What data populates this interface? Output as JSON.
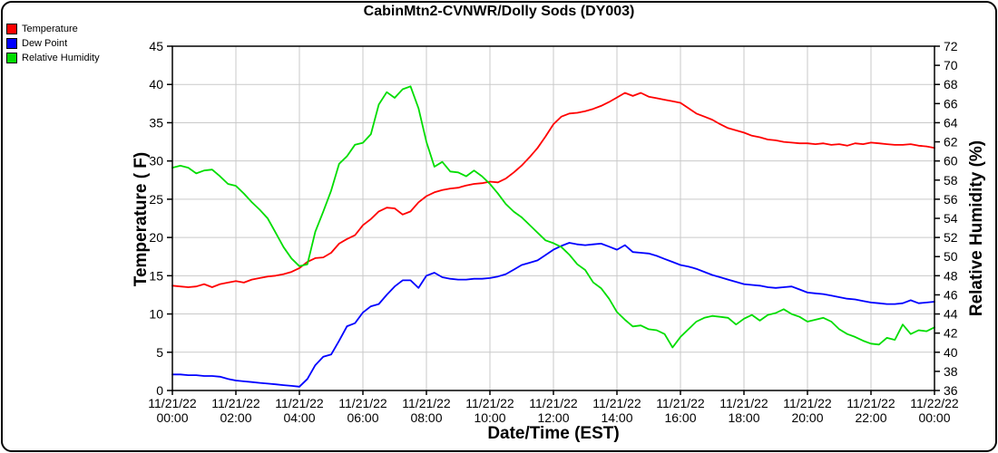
{
  "colors": {
    "grid": "#c9c9c9",
    "axis": "#000000",
    "background": "#ffffff",
    "border": "#000000"
  },
  "chart_data": {
    "type": "line",
    "title": "CabinMtn2-CVNWR/Dolly Sods (DY003)",
    "xlabel": "Date/Time (EST)",
    "ylabel_left": "Temperature ( F)",
    "ylabel_right": "Relative Humidity (%)",
    "grid": true,
    "legend_position": "top-left",
    "left_axis": {
      "min": 0,
      "max": 45,
      "ticks": [
        45,
        40,
        35,
        30,
        25,
        20,
        15,
        10,
        5,
        0
      ]
    },
    "right_axis": {
      "min": 36,
      "max": 72,
      "ticks": [
        72,
        70,
        68,
        66,
        64,
        62,
        60,
        58,
        56,
        54,
        52,
        50,
        48,
        46,
        44,
        42,
        40,
        38,
        36
      ]
    },
    "x_axis": {
      "start_hour": 0,
      "end_hour": 24,
      "interval_minutes": 15,
      "ticks": [
        {
          "date": "11/21/22",
          "time": "00:00"
        },
        {
          "date": "11/21/22",
          "time": "02:00"
        },
        {
          "date": "11/21/22",
          "time": "04:00"
        },
        {
          "date": "11/21/22",
          "time": "06:00"
        },
        {
          "date": "11/21/22",
          "time": "08:00"
        },
        {
          "date": "11/21/22",
          "time": "10:00"
        },
        {
          "date": "11/21/22",
          "time": "12:00"
        },
        {
          "date": "11/21/22",
          "time": "14:00"
        },
        {
          "date": "11/21/22",
          "time": "16:00"
        },
        {
          "date": "11/21/22",
          "time": "18:00"
        },
        {
          "date": "11/21/22",
          "time": "20:00"
        },
        {
          "date": "11/21/22",
          "time": "22:00"
        },
        {
          "date": "11/22/22",
          "time": "00:00"
        }
      ]
    },
    "series": [
      {
        "name": "Temperature",
        "axis": "left",
        "color": "#ff0000",
        "values": [
          13.7,
          13.6,
          13.5,
          13.6,
          13.9,
          13.5,
          13.9,
          14.1,
          14.3,
          14.1,
          14.5,
          14.7,
          14.9,
          15.0,
          15.2,
          15.5,
          16.0,
          16.8,
          17.3,
          17.4,
          18.0,
          19.2,
          19.8,
          20.3,
          21.6,
          22.4,
          23.4,
          23.9,
          23.8,
          23.0,
          23.4,
          24.6,
          25.4,
          25.9,
          26.2,
          26.4,
          26.5,
          26.8,
          27.0,
          27.1,
          27.3,
          27.2,
          27.7,
          28.5,
          29.4,
          30.5,
          31.7,
          33.2,
          34.8,
          35.8,
          36.2,
          36.3,
          36.5,
          36.8,
          37.2,
          37.7,
          38.3,
          38.9,
          38.5,
          38.9,
          38.4,
          38.2,
          38.0,
          37.8,
          37.6,
          36.9,
          36.2,
          35.8,
          35.4,
          34.8,
          34.3,
          34.0,
          33.7,
          33.3,
          33.1,
          32.8,
          32.7,
          32.5,
          32.4,
          32.3,
          32.3,
          32.2,
          32.3,
          32.1,
          32.2,
          32.0,
          32.3,
          32.2,
          32.4,
          32.3,
          32.2,
          32.1,
          32.1,
          32.2,
          32.0,
          31.9,
          31.7
        ]
      },
      {
        "name": "Dew Point",
        "axis": "left",
        "color": "#0000ff",
        "values": [
          2.1,
          2.1,
          2.0,
          2.0,
          1.9,
          1.9,
          1.8,
          1.5,
          1.3,
          1.2,
          1.1,
          1.0,
          0.9,
          0.8,
          0.7,
          0.6,
          0.5,
          1.5,
          3.3,
          4.4,
          4.7,
          6.5,
          8.4,
          8.8,
          10.2,
          11.0,
          11.3,
          12.5,
          13.6,
          14.4,
          14.4,
          13.4,
          15.0,
          15.4,
          14.8,
          14.6,
          14.5,
          14.5,
          14.6,
          14.6,
          14.7,
          14.9,
          15.2,
          15.8,
          16.4,
          16.7,
          17.0,
          17.7,
          18.4,
          18.9,
          19.3,
          19.1,
          19.0,
          19.1,
          19.2,
          18.8,
          18.4,
          19.0,
          18.1,
          18.0,
          17.9,
          17.6,
          17.2,
          16.8,
          16.4,
          16.2,
          15.9,
          15.5,
          15.1,
          14.8,
          14.5,
          14.2,
          13.9,
          13.8,
          13.7,
          13.5,
          13.4,
          13.5,
          13.6,
          13.2,
          12.8,
          12.7,
          12.6,
          12.4,
          12.2,
          12.0,
          11.9,
          11.7,
          11.5,
          11.4,
          11.3,
          11.3,
          11.4,
          11.8,
          11.4,
          11.5,
          11.6
        ]
      },
      {
        "name": "Relative Humidity",
        "axis": "right",
        "color": "#00dd00",
        "values": [
          59.3,
          59.5,
          59.3,
          58.7,
          59.0,
          59.1,
          58.4,
          57.6,
          57.4,
          56.6,
          55.7,
          54.9,
          54.0,
          52.5,
          51.0,
          49.8,
          49.0,
          49.2,
          52.6,
          54.7,
          56.9,
          59.7,
          60.5,
          61.7,
          61.9,
          62.8,
          65.9,
          67.2,
          66.6,
          67.5,
          67.8,
          65.5,
          62.0,
          59.4,
          59.9,
          58.9,
          58.8,
          58.4,
          59.0,
          58.4,
          57.6,
          56.6,
          55.5,
          54.7,
          54.1,
          53.3,
          52.5,
          51.7,
          51.4,
          51.0,
          50.2,
          49.2,
          48.6,
          47.3,
          46.7,
          45.6,
          44.2,
          43.4,
          42.7,
          42.8,
          42.4,
          42.3,
          41.9,
          40.5,
          41.6,
          42.4,
          43.2,
          43.6,
          43.8,
          43.7,
          43.6,
          42.9,
          43.5,
          43.9,
          43.3,
          43.9,
          44.1,
          44.5,
          44.0,
          43.7,
          43.2,
          43.4,
          43.6,
          43.2,
          42.4,
          41.9,
          41.6,
          41.2,
          40.9,
          40.8,
          41.5,
          41.3,
          42.9,
          41.9,
          42.3,
          42.2,
          42.6
        ]
      }
    ]
  }
}
